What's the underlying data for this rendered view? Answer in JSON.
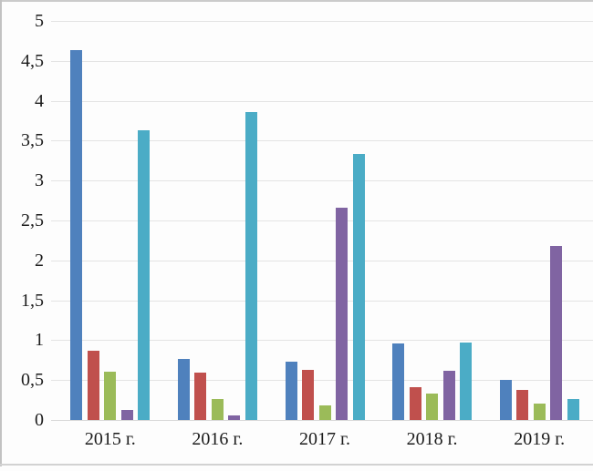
{
  "figure": {
    "kind": "grouped-bar-chart",
    "title": "",
    "legend_visible": false
  },
  "appearance": {
    "background": "#fdfdfd",
    "gridline_color": "#e4e4e4",
    "baseline_color": "#d8d8d8",
    "text_color": "#1c1c1c",
    "scan_border_color": "#c6c6c6"
  },
  "chart_data": {
    "type": "bar",
    "title": "",
    "xlabel": "",
    "ylabel": "",
    "categories": [
      "2015 г.",
      "2016 г.",
      "2017 г.",
      "2018 г.",
      "2019 г."
    ],
    "series": [
      {
        "name": "blue",
        "color": "#4F81BD",
        "values": [
          4.63,
          0.77,
          0.73,
          0.96,
          0.5
        ]
      },
      {
        "name": "red",
        "color": "#C0504D",
        "values": [
          0.87,
          0.59,
          0.63,
          0.41,
          0.38
        ]
      },
      {
        "name": "green",
        "color": "#9BBB59",
        "values": [
          0.61,
          0.26,
          0.18,
          0.33,
          0.21
        ]
      },
      {
        "name": "purple",
        "color": "#8064A2",
        "values": [
          0.13,
          0.06,
          2.66,
          0.62,
          2.18
        ]
      },
      {
        "name": "cyan",
        "color": "#4BACC6",
        "values": [
          3.63,
          3.86,
          3.33,
          0.97,
          0.26
        ]
      }
    ],
    "ylim": [
      0,
      5
    ],
    "y_tick_step": 0.5,
    "y_tick_labels": [
      "0",
      "0,5",
      "1",
      "1,5",
      "2",
      "2,5",
      "3",
      "3,5",
      "4",
      "4,5",
      "5"
    ],
    "grid": true,
    "legend_position": "none"
  }
}
